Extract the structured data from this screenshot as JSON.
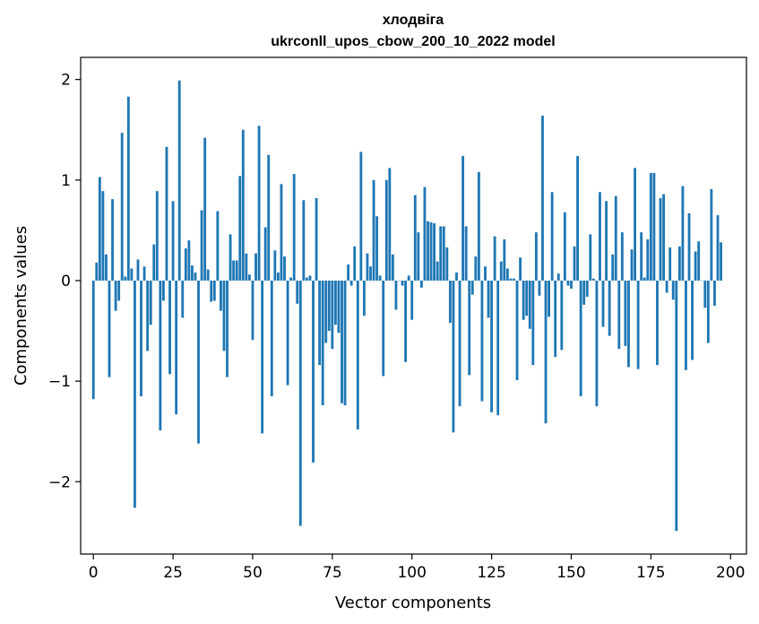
{
  "chart_data": {
    "type": "bar",
    "title": "хлодвіга",
    "subtitle": "ukrconll_upos_cbow_200_10_2022 model",
    "xlabel": "Vector components",
    "ylabel": "Components values",
    "xlim": [
      -4,
      205
    ],
    "ylim": [
      -2.72,
      2.22
    ],
    "xticks": [
      0,
      25,
      50,
      75,
      100,
      125,
      150,
      175,
      200
    ],
    "yticks": [
      -2,
      -1,
      0,
      1,
      2
    ],
    "ytick_labels": [
      "−2",
      "−1",
      "0",
      "1",
      "2"
    ],
    "grid": false,
    "legend": "none",
    "bar_color": "#1f77b4",
    "x_start": 0,
    "values": [
      -1.18,
      0.18,
      1.03,
      0.89,
      0.26,
      -0.96,
      0.81,
      -0.3,
      -0.2,
      1.47,
      0.04,
      1.83,
      0.12,
      -2.26,
      0.21,
      -1.15,
      0.14,
      -0.7,
      -0.44,
      0.36,
      0.89,
      -1.49,
      -0.2,
      1.33,
      -0.93,
      0.79,
      -1.33,
      1.99,
      -0.37,
      0.32,
      0.4,
      0.15,
      0.08,
      -1.62,
      0.7,
      1.42,
      0.11,
      -0.21,
      -0.2,
      0.69,
      -0.3,
      -0.7,
      -0.96,
      0.46,
      0.2,
      0.2,
      1.04,
      1.5,
      0.27,
      0.06,
      -0.59,
      0.27,
      1.54,
      -1.52,
      0.53,
      1.25,
      -1.15,
      0.3,
      0.08,
      0.96,
      0.24,
      -1.04,
      0.03,
      1.06,
      -0.23,
      -2.44,
      0.8,
      0.03,
      0.05,
      -1.81,
      0.82,
      -0.84,
      -1.24,
      -0.62,
      -0.5,
      -0.68,
      -0.44,
      -0.52,
      -1.22,
      -1.24,
      0.16,
      -0.05,
      0.34,
      -1.48,
      1.28,
      -0.35,
      0.27,
      0.14,
      1.0,
      0.64,
      0.05,
      -0.95,
      1.0,
      1.12,
      0.26,
      -0.29,
      0.0,
      -0.05,
      -0.81,
      0.05,
      -0.39,
      0.85,
      0.48,
      -0.07,
      0.93,
      0.59,
      0.58,
      0.57,
      0.19,
      0.54,
      0.54,
      0.33,
      -0.42,
      -1.51,
      0.08,
      -1.25,
      1.24,
      0.54,
      -0.94,
      -0.14,
      0.24,
      1.08,
      -1.2,
      0.14,
      -0.37,
      -1.31,
      0.44,
      -1.34,
      0.19,
      0.41,
      0.12,
      0.02,
      0.02,
      -0.99,
      0.23,
      -0.39,
      -0.35,
      -0.48,
      -0.84,
      0.48,
      -0.15,
      1.64,
      -1.42,
      -0.36,
      0.88,
      -0.76,
      0.07,
      -0.69,
      0.68,
      -0.05,
      -0.08,
      0.34,
      1.24,
      -1.15,
      -0.24,
      -0.16,
      0.46,
      0.02,
      -1.25,
      0.88,
      -0.46,
      0.79,
      -0.55,
      0.26,
      0.84,
      -0.68,
      0.48,
      -0.65,
      -0.86,
      0.31,
      1.12,
      -0.88,
      0.48,
      0.03,
      0.41,
      1.07,
      1.07,
      -0.84,
      0.82,
      0.86,
      -0.12,
      0.33,
      -0.19,
      -2.49,
      0.34,
      0.94,
      -0.89,
      0.67,
      -0.79,
      0.29,
      0.39,
      0.0,
      -0.27,
      -0.62,
      0.91,
      -0.25,
      0.65,
      0.38
    ]
  }
}
